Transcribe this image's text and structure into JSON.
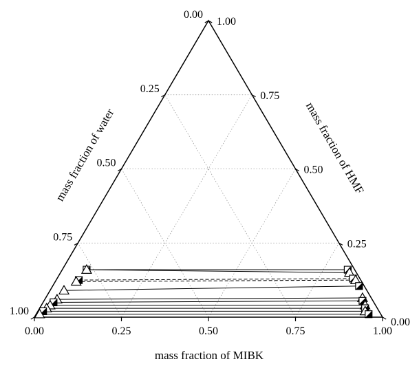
{
  "chart_data": {
    "type": "ternary",
    "title": "",
    "axes": {
      "bottom": {
        "label": "mass fraction of MIBK",
        "ticks": [
          "0.00",
          "0.25",
          "0.50",
          "0.75",
          "1.00"
        ]
      },
      "left": {
        "label": "mass fraction of water",
        "ticks": [
          "0.00",
          "0.25",
          "0.50",
          "0.75",
          "1.00"
        ]
      },
      "right": {
        "label": "mass fraction of HMF",
        "ticks": [
          "0.00",
          "0.25",
          "0.50",
          "0.75",
          "1.00"
        ]
      }
    },
    "grid": true,
    "tie_lines": [
      {
        "style": "solid",
        "a": {
          "mibk": 0.07,
          "hmf": 0.16,
          "marker": "half-square"
        },
        "b": {
          "mibk": 0.82,
          "hmf": 0.16,
          "marker": "half-square"
        }
      },
      {
        "style": "solid",
        "a": {
          "mibk": 0.07,
          "hmf": 0.16,
          "marker": "triangle"
        },
        "b": {
          "mibk": 0.83,
          "hmf": 0.15,
          "marker": "triangle"
        }
      },
      {
        "style": "dashed",
        "a": {
          "mibk": 0.065,
          "hmf": 0.125,
          "marker": "half-square"
        },
        "b": {
          "mibk": 0.85,
          "hmf": 0.13,
          "marker": "half-square"
        }
      },
      {
        "style": "dashed",
        "a": {
          "mibk": 0.06,
          "hmf": 0.12,
          "marker": "triangle"
        },
        "b": {
          "mibk": 0.86,
          "hmf": 0.125,
          "marker": "triangle"
        }
      },
      {
        "style": "solid",
        "a": {
          "mibk": 0.04,
          "hmf": 0.09,
          "marker": "triangle"
        },
        "b": {
          "mibk": 0.88,
          "hmf": 0.105,
          "marker": "half-square"
        }
      },
      {
        "style": "solid",
        "a": {
          "mibk": 0.035,
          "hmf": 0.06,
          "marker": "triangle"
        },
        "b": {
          "mibk": 0.91,
          "hmf": 0.065,
          "marker": "triangle"
        }
      },
      {
        "style": "solid",
        "a": {
          "mibk": 0.03,
          "hmf": 0.05,
          "marker": "half-square"
        },
        "b": {
          "mibk": 0.915,
          "hmf": 0.055,
          "marker": "half-square"
        }
      },
      {
        "style": "solid",
        "a": {
          "mibk": 0.025,
          "hmf": 0.04,
          "marker": "triangle"
        },
        "b": {
          "mibk": 0.93,
          "hmf": 0.04,
          "marker": "triangle"
        }
      },
      {
        "style": "solid",
        "a": {
          "mibk": 0.02,
          "hmf": 0.03,
          "marker": "triangle"
        },
        "b": {
          "mibk": 0.935,
          "hmf": 0.03,
          "marker": "half-square"
        }
      },
      {
        "style": "solid",
        "a": {
          "mibk": 0.015,
          "hmf": 0.02,
          "marker": "half-square"
        },
        "b": {
          "mibk": 0.94,
          "hmf": 0.02,
          "marker": "triangle"
        }
      },
      {
        "style": "solid",
        "a": {
          "mibk": 0.01,
          "hmf": 0.01,
          "marker": "triangle"
        },
        "b": {
          "mibk": 0.955,
          "hmf": 0.01,
          "marker": "half-square"
        }
      }
    ]
  }
}
